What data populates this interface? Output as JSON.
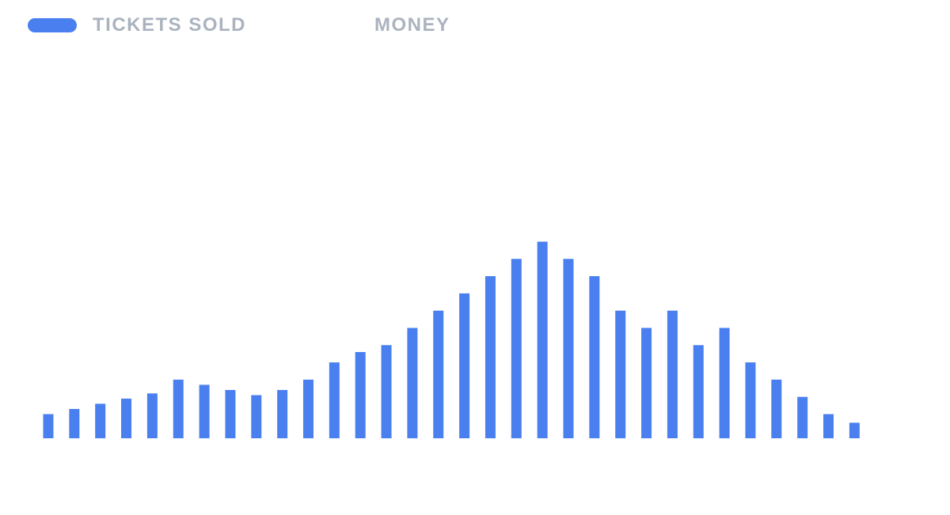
{
  "tabs": [
    {
      "label": "TICKETS SOLD",
      "active": true
    },
    {
      "label": "MONEY",
      "active": false
    }
  ],
  "colors": {
    "accent": "#4a7ff0",
    "tab_inactive": "#aab3bf"
  },
  "chart_data": {
    "type": "bar",
    "title": "",
    "xlabel": "",
    "ylabel": "",
    "ylim": [
      0,
      12
    ],
    "grid": false,
    "series": [
      {
        "values": [
          1.4,
          1.7,
          2.0,
          2.3,
          2.6,
          3.4,
          3.1,
          2.8,
          2.5,
          2.8,
          3.4,
          4.4,
          5.0,
          5.4,
          6.4,
          7.4,
          8.4,
          9.4,
          10.4,
          11.4,
          10.4,
          9.4,
          7.4,
          6.4,
          7.4,
          5.4,
          6.4,
          4.4,
          3.4,
          2.4,
          1.4,
          0.9
        ]
      }
    ]
  }
}
